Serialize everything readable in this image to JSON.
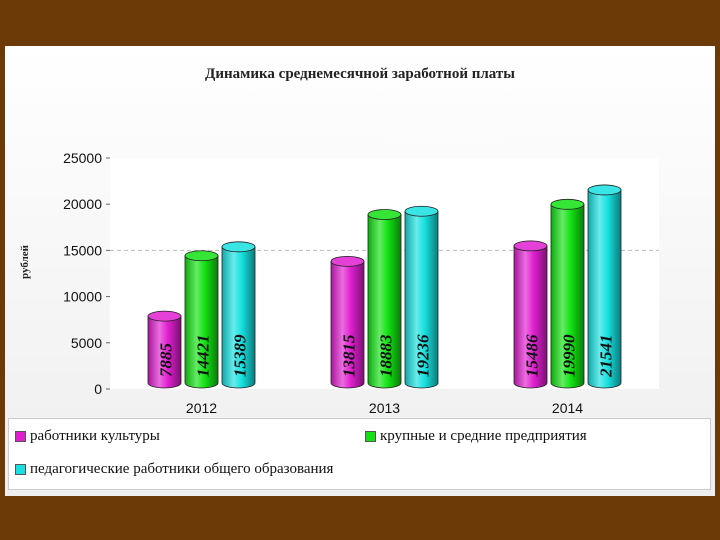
{
  "chart_data": {
    "type": "bar",
    "title": "Динамика среднемесячной заработной платы",
    "xlabel": "",
    "ylabel": "рублей",
    "categories": [
      "2012",
      "2013",
      "2014"
    ],
    "ylim": [
      0,
      25000
    ],
    "yticks": [
      "0",
      "5000",
      "10000",
      "15000",
      "20000",
      "25000"
    ],
    "grid": false,
    "legend_position": "bottom",
    "series": [
      {
        "name": "работники культуры",
        "color": "#e01ed0",
        "values": [
          7885,
          13815,
          15486
        ]
      },
      {
        "name": "крупные и средние предприятия",
        "color": "#12e212",
        "values": [
          14421,
          18883,
          19990
        ]
      },
      {
        "name": "педагогические работники общего образования",
        "color": "#16e0e0",
        "values": [
          15389,
          19236,
          21541
        ]
      }
    ]
  }
}
